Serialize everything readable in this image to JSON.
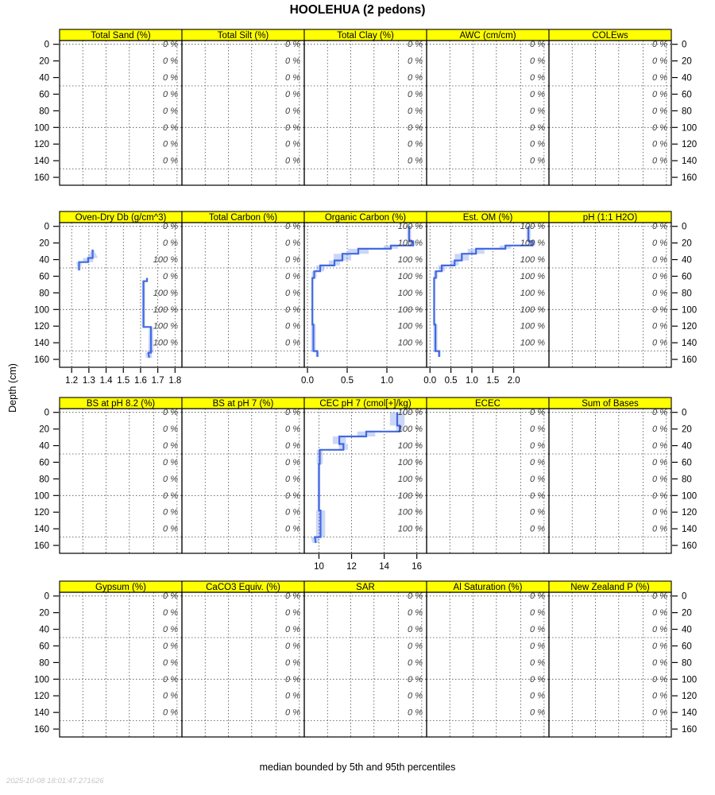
{
  "timestamp": "2025-10-08 18:01:47.271626",
  "colors": {
    "strip_bg": "#ffff00",
    "median_line": "#4169e1",
    "band_opacity": 0.27,
    "pct_label": "#3d3d3d",
    "grid": "#4a4a4a",
    "timestamp_text": "#c6c6c6"
  },
  "chart_data": {
    "type": "line",
    "orientation": "soil-depth-profile",
    "title": "HOOLEHUA (2 pedons)",
    "ylabel": "Depth (cm)",
    "caption": "median bounded by 5th and 95th percentiles",
    "depth_ticks": [
      0,
      20,
      40,
      60,
      80,
      100,
      120,
      140,
      160
    ],
    "depth_grid_lines": [
      0,
      50,
      100,
      150
    ],
    "depth_range": [
      -4.5,
      169.5
    ],
    "pct_label_depths": [
      0,
      20,
      40,
      60,
      80,
      100,
      120,
      140
    ],
    "rows": [
      {
        "panels": [
          {
            "title": "Total Sand (%)",
            "pct_labels": [
              "0 %",
              "0 %",
              "0 %",
              "0 %",
              "0 %",
              "0 %",
              "0 %",
              "0 %"
            ]
          },
          {
            "title": "Total Silt (%)",
            "pct_labels": [
              "0 %",
              "0 %",
              "0 %",
              "0 %",
              "0 %",
              "0 %",
              "0 %",
              "0 %"
            ]
          },
          {
            "title": "Total Clay (%)",
            "pct_labels": [
              "0 %",
              "0 %",
              "0 %",
              "0 %",
              "0 %",
              "0 %",
              "0 %",
              "0 %"
            ]
          },
          {
            "title": "AWC (cm/cm)",
            "pct_labels": [
              "0 %",
              "0 %",
              "0 %",
              "0 %",
              "0 %",
              "0 %",
              "0 %",
              "0 %"
            ]
          },
          {
            "title": "COLEws",
            "pct_labels": [
              "0 %",
              "0 %",
              "0 %",
              "0 %",
              "0 %",
              "0 %",
              "0 %",
              "0 %"
            ]
          }
        ]
      },
      {
        "panels": [
          {
            "title": "Oven-Dry Db (g/cm^3)",
            "pct_labels": [
              "0 %",
              "0 %",
              "100 %",
              "0 %",
              "100 %",
              "100 %",
              "100 %",
              "100 %"
            ],
            "xaxis": {
              "tick_values": [
                1.2,
                1.3,
                1.4,
                1.5,
                1.6,
                1.7,
                1.8
              ],
              "tick_labels": [
                "1.2",
                "1.3",
                "1.4",
                "1.5",
                "1.6",
                "1.7",
                "1.8"
              ],
              "range": [
                1.13,
                1.84
              ]
            },
            "segments": [
              {
                "points": [
                  [
                    1.322,
                    28,
                    0.006
                  ],
                  [
                    1.322,
                    38,
                    0.03
                  ],
                  [
                    1.296,
                    38,
                    0.03
                  ],
                  [
                    1.296,
                    43,
                    0.03
                  ],
                  [
                    1.243,
                    43,
                    0.016
                  ],
                  [
                    1.243,
                    53,
                    0.008
                  ]
                ]
              },
              {
                "points": [
                  [
                    1.637,
                    62,
                    0.006
                  ],
                  [
                    1.637,
                    66,
                    0.006
                  ],
                  [
                    1.617,
                    66,
                    0.009
                  ],
                  [
                    1.617,
                    121,
                    0.009
                  ],
                  [
                    1.66,
                    121,
                    0.012
                  ],
                  [
                    1.66,
                    152,
                    0.016
                  ],
                  [
                    1.645,
                    152,
                    0.018
                  ],
                  [
                    1.65,
                    158,
                    0.018
                  ]
                ]
              }
            ]
          },
          {
            "title": "Total Carbon (%)",
            "pct_labels": [
              "0 %",
              "0 %",
              "0 %",
              "0 %",
              "0 %",
              "0 %",
              "0 %",
              "0 %"
            ]
          },
          {
            "title": "Organic Carbon (%)",
            "pct_labels": [
              "100 %",
              "100 %",
              "100 %",
              "100 %",
              "100 %",
              "100 %",
              "100 %",
              "100 %"
            ],
            "xaxis": {
              "tick_values": [
                0.0,
                0.5,
                1.0
              ],
              "tick_labels": [
                "0.0",
                "0.5",
                "1.0"
              ],
              "range": [
                -0.04,
                1.5
              ]
            },
            "segments": [
              {
                "points": [
                  [
                    1.28,
                    0,
                    0.025
                  ],
                  [
                    1.28,
                    18,
                    0.025
                  ],
                  [
                    1.33,
                    18,
                    0.04
                  ],
                  [
                    1.33,
                    23,
                    0.04
                  ],
                  [
                    1.05,
                    23,
                    0.09
                  ],
                  [
                    1.05,
                    27,
                    0.09
                  ],
                  [
                    0.64,
                    27,
                    0.13
                  ],
                  [
                    0.64,
                    33,
                    0.13
                  ],
                  [
                    0.44,
                    33,
                    0.11
                  ],
                  [
                    0.44,
                    41,
                    0.11
                  ],
                  [
                    0.34,
                    41,
                    0.07
                  ],
                  [
                    0.34,
                    47,
                    0.07
                  ],
                  [
                    0.16,
                    47,
                    0.05
                  ],
                  [
                    0.16,
                    54,
                    0.05
                  ],
                  [
                    0.085,
                    54,
                    0.03
                  ],
                  [
                    0.085,
                    62,
                    0.03
                  ],
                  [
                    0.062,
                    62,
                    0.012
                  ],
                  [
                    0.062,
                    118,
                    0.012
                  ],
                  [
                    0.075,
                    118,
                    0.03
                  ],
                  [
                    0.075,
                    150,
                    0.03
                  ],
                  [
                    0.125,
                    150,
                    0.02
                  ],
                  [
                    0.125,
                    157,
                    0.02
                  ]
                ]
              }
            ]
          },
          {
            "title": "Est. OM (%)",
            "pct_labels": [
              "100 %",
              "100 %",
              "100 %",
              "100 %",
              "100 %",
              "100 %",
              "100 %",
              "100 %"
            ],
            "xaxis": {
              "tick_values": [
                0.0,
                0.5,
                1.0,
                1.5,
                2.0
              ],
              "tick_labels": [
                "0.0",
                "0.5",
                "1.0",
                "1.5",
                "2.0"
              ],
              "range": [
                -0.08,
                2.84
              ]
            },
            "segments": [
              {
                "points": [
                  [
                    2.35,
                    0,
                    0.05
                  ],
                  [
                    2.35,
                    18,
                    0.05
                  ],
                  [
                    2.45,
                    18,
                    0.07
                  ],
                  [
                    2.45,
                    23,
                    0.07
                  ],
                  [
                    1.8,
                    23,
                    0.14
                  ],
                  [
                    1.8,
                    27,
                    0.14
                  ],
                  [
                    1.1,
                    27,
                    0.2
                  ],
                  [
                    1.1,
                    33,
                    0.2
                  ],
                  [
                    0.76,
                    33,
                    0.17
                  ],
                  [
                    0.76,
                    41,
                    0.17
                  ],
                  [
                    0.59,
                    41,
                    0.1
                  ],
                  [
                    0.59,
                    47,
                    0.1
                  ],
                  [
                    0.28,
                    47,
                    0.08
                  ],
                  [
                    0.28,
                    54,
                    0.08
                  ],
                  [
                    0.14,
                    54,
                    0.05
                  ],
                  [
                    0.14,
                    62,
                    0.05
                  ],
                  [
                    0.1,
                    62,
                    0.022
                  ],
                  [
                    0.1,
                    118,
                    0.022
                  ],
                  [
                    0.13,
                    118,
                    0.05
                  ],
                  [
                    0.13,
                    150,
                    0.05
                  ],
                  [
                    0.22,
                    150,
                    0.035
                  ],
                  [
                    0.22,
                    157,
                    0.035
                  ]
                ]
              }
            ]
          },
          {
            "title": "pH (1:1 H2O)",
            "pct_labels": [
              "0 %",
              "0 %",
              "0 %",
              "0 %",
              "0 %",
              "0 %",
              "0 %",
              "0 %"
            ]
          }
        ]
      },
      {
        "panels": [
          {
            "title": "BS at pH 8.2 (%)",
            "pct_labels": [
              "0 %",
              "0 %",
              "0 %",
              "0 %",
              "0 %",
              "0 %",
              "0 %",
              "0 %"
            ]
          },
          {
            "title": "BS at pH 7 (%)",
            "pct_labels": [
              "0 %",
              "0 %",
              "0 %",
              "0 %",
              "0 %",
              "0 %",
              "0 %",
              "0 %"
            ]
          },
          {
            "title": "CEC pH 7 (cmol[+]/kg)",
            "pct_labels": [
              "100 %",
              "100 %",
              "100 %",
              "100 %",
              "100 %",
              "100 %",
              "100 %",
              "100 %"
            ],
            "xaxis": {
              "tick_values": [
                10,
                12,
                14,
                16
              ],
              "tick_labels": [
                "10",
                "12",
                "14",
                "16"
              ],
              "range": [
                9.1,
                16.6
              ]
            },
            "segments": [
              {
                "points": [
                  [
                    14.8,
                    0,
                    0.45
                  ],
                  [
                    14.8,
                    16,
                    0.45
                  ],
                  [
                    14.95,
                    16,
                    0.22
                  ],
                  [
                    14.95,
                    23,
                    0.22
                  ],
                  [
                    12.9,
                    23,
                    0.55
                  ],
                  [
                    12.9,
                    29,
                    0.55
                  ],
                  [
                    11.25,
                    29,
                    0.4
                  ],
                  [
                    11.25,
                    38,
                    0.4
                  ],
                  [
                    11.5,
                    38,
                    0.28
                  ],
                  [
                    11.5,
                    45,
                    0.28
                  ],
                  [
                    10.05,
                    45,
                    0.18
                  ],
                  [
                    10.05,
                    62,
                    0.18
                  ],
                  [
                    10.0,
                    62,
                    0.08
                  ],
                  [
                    10.0,
                    118,
                    0.08
                  ],
                  [
                    10.1,
                    118,
                    0.28
                  ],
                  [
                    10.1,
                    150,
                    0.28
                  ],
                  [
                    9.75,
                    150,
                    0.22
                  ],
                  [
                    9.8,
                    157,
                    0.22
                  ]
                ]
              }
            ]
          },
          {
            "title": "ECEC",
            "pct_labels": [
              "0 %",
              "0 %",
              "0 %",
              "0 %",
              "0 %",
              "0 %",
              "0 %",
              "0 %"
            ]
          },
          {
            "title": "Sum of Bases",
            "pct_labels": [
              "0 %",
              "0 %",
              "0 %",
              "0 %",
              "0 %",
              "0 %",
              "0 %",
              "0 %"
            ]
          }
        ]
      },
      {
        "panels": [
          {
            "title": "Gypsum (%)",
            "pct_labels": [
              "0 %",
              "0 %",
              "0 %",
              "0 %",
              "0 %",
              "0 %",
              "0 %",
              "0 %"
            ]
          },
          {
            "title": "CaCO3 Equiv. (%)",
            "pct_labels": [
              "0 %",
              "0 %",
              "0 %",
              "0 %",
              "0 %",
              "0 %",
              "0 %",
              "0 %"
            ]
          },
          {
            "title": "SAR",
            "pct_labels": [
              "0 %",
              "0 %",
              "0 %",
              "0 %",
              "0 %",
              "0 %",
              "0 %",
              "0 %"
            ]
          },
          {
            "title": "Al Saturation (%)",
            "pct_labels": [
              "0 %",
              "0 %",
              "0 %",
              "0 %",
              "0 %",
              "0 %",
              "0 %",
              "0 %"
            ]
          },
          {
            "title": "New Zealand P (%)",
            "pct_labels": [
              "0 %",
              "0 %",
              "0 %",
              "0 %",
              "0 %",
              "0 %",
              "0 %",
              "0 %"
            ]
          }
        ]
      }
    ]
  }
}
